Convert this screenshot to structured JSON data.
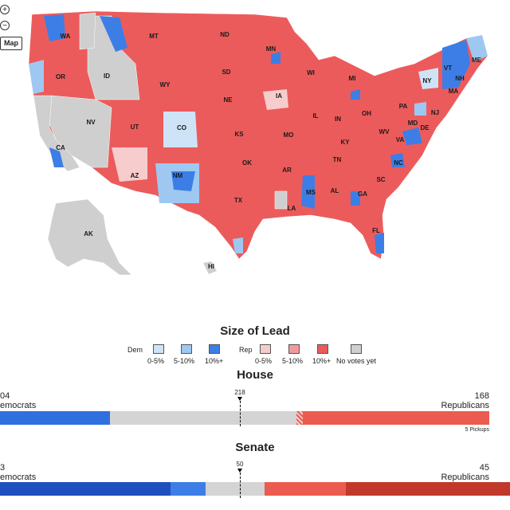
{
  "map": {
    "toggle_label": "Map",
    "zoom_in_symbol": "+",
    "zoom_out_symbol": "−",
    "state_labels": [
      "WA",
      "MT",
      "ND",
      "ME",
      "MN",
      "OR",
      "ID",
      "SD",
      "VT",
      "NH",
      "WI",
      "MI",
      "NY",
      "MA",
      "WY",
      "IA",
      "NE",
      "PA",
      "NJ",
      "NV",
      "IL",
      "IN",
      "OH",
      "MD",
      "DE",
      "UT",
      "CO",
      "KS",
      "MO",
      "KY",
      "WV",
      "VA",
      "CA",
      "OK",
      "TN",
      "NC",
      "AZ",
      "NM",
      "AR",
      "SC",
      "MS",
      "AL",
      "GA",
      "TX",
      "LA",
      "FL",
      "AK",
      "HI"
    ],
    "colors": {
      "dem_0_5": "#cfe3f6",
      "dem_5_10": "#9ec8f2",
      "dem_10_plus": "#3d7ee6",
      "rep_0_5": "#f6cccc",
      "rep_5_10": "#f29a9a",
      "rep_10_plus": "#ec5b5b",
      "no_votes": "#cfcfcf"
    }
  },
  "legend": {
    "title": "Size of Lead",
    "dem_label": "Dem",
    "rep_label": "Rep",
    "dem_ranges": [
      "0-5%",
      "5-10%",
      "10%+"
    ],
    "rep_ranges": [
      "0-5%",
      "5-10%",
      "10%+"
    ],
    "no_votes_label": "No votes yet"
  },
  "house": {
    "title": "House",
    "dem_count": "04",
    "dem_name": "emocrats",
    "rep_count": "168",
    "rep_name": "Republicans",
    "threshold": "218",
    "pickups": "5 Pickups",
    "colors": {
      "dem": "#2f6fe0",
      "undecided": "#d4d4d4",
      "rep": "#ec5b4f"
    }
  },
  "senate": {
    "title": "Senate",
    "dem_count": "3",
    "dem_name": "emocrats",
    "rep_count": "45",
    "rep_name": "Republicans",
    "threshold": "50",
    "colors": {
      "dem_held": "#1f4fbf",
      "dem_new": "#3d7ee6",
      "undecided": "#d4d4d4",
      "rep_new": "#ec5b4f",
      "rep_held": "#c0392b"
    }
  }
}
